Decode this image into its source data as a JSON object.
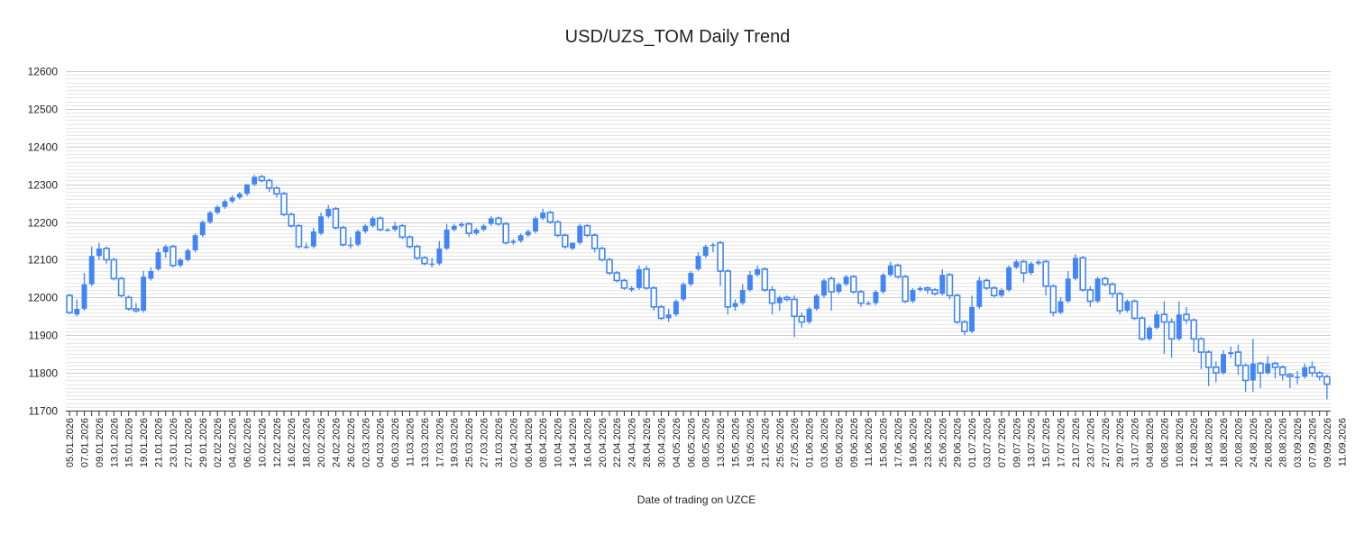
{
  "chart_data": {
    "type": "candlestick",
    "title": "USD/UZS_TOM Daily Trend",
    "xlabel": "Date of trading on UZCE",
    "ylabel": "",
    "ylim": [
      11700,
      12600
    ],
    "yticks": [
      11700,
      11800,
      11900,
      12000,
      12100,
      12200,
      12300,
      12400,
      12500,
      12600
    ],
    "minor_grid_step": 10,
    "grid": true,
    "colors": {
      "up": "#4285f4",
      "down_outline": "#4285f4",
      "down_fill": "#ffffff",
      "grid_major": "#cccccc",
      "grid_minor": "#e6e6e6"
    },
    "xtick_labels": [
      "05.01.2026",
      "07.01.2026",
      "09.01.2026",
      "13.01.2026",
      "15.01.2026",
      "19.01.2026",
      "21.01.2026",
      "23.01.2026",
      "27.01.2026",
      "29.01.2026",
      "02.02.2026",
      "04.02.2026",
      "06.02.2026",
      "10.02.2026",
      "12.02.2026",
      "16.02.2026",
      "18.02.2026",
      "20.02.2026",
      "24.02.2026",
      "26.02.2026",
      "02.03.2026",
      "04.03.2026",
      "06.03.2026",
      "11.03.2026",
      "13.03.2026",
      "17.03.2026",
      "19.03.2026",
      "25.03.2026",
      "27.03.2026",
      "31.03.2026",
      "02.04.2026",
      "06.04.2026",
      "08.04.2026",
      "10.04.2026",
      "14.04.2026",
      "16.04.2026",
      "20.04.2026",
      "22.04.2026",
      "24.04.2026",
      "28.04.2026",
      "30.04.2026",
      "04.05.2026",
      "06.05.2026",
      "08.05.2026",
      "13.05.2026",
      "15.05.2026",
      "19.05.2026",
      "21.05.2026",
      "25.05.2026",
      "27.05.2026",
      "01.06.2026",
      "03.06.2026",
      "05.06.2026",
      "09.06.2026",
      "11.06.2026",
      "15.06.2026",
      "17.06.2026",
      "19.06.2026",
      "23.06.2026",
      "25.06.2026",
      "29.06.2026",
      "01.07.2026",
      "03.07.2026",
      "07.07.2026",
      "09.07.2026",
      "13.07.2026",
      "15.07.2026",
      "17.07.2026",
      "21.07.2026",
      "23.07.2026",
      "27.07.2026",
      "29.07.2026",
      "31.07.2026",
      "04.08.2026",
      "06.08.2026",
      "10.08.2026",
      "12.08.2026",
      "14.08.2026",
      "18.08.2026",
      "20.08.2026",
      "24.08.2026",
      "26.08.2026",
      "28.08.2026",
      "03.09.2026",
      "07.09.2026",
      "09.09.2026",
      "11.09.2026"
    ],
    "candles": [
      {
        "o": 12005,
        "h": 12010,
        "l": 11955,
        "c": 11960
      },
      {
        "o": 11955,
        "h": 11995,
        "l": 11950,
        "c": 11970
      },
      {
        "o": 11970,
        "h": 12065,
        "l": 11965,
        "c": 12035
      },
      {
        "o": 12035,
        "h": 12135,
        "l": 12030,
        "c": 12110
      },
      {
        "o": 12110,
        "h": 12145,
        "l": 12100,
        "c": 12130
      },
      {
        "o": 12130,
        "h": 12135,
        "l": 12090,
        "c": 12100
      },
      {
        "o": 12100,
        "h": 12105,
        "l": 12045,
        "c": 12050
      },
      {
        "o": 12050,
        "h": 12055,
        "l": 12000,
        "c": 12005
      },
      {
        "o": 12000,
        "h": 12005,
        "l": 11965,
        "c": 11970
      },
      {
        "o": 11970,
        "h": 11985,
        "l": 11960,
        "c": 11965
      },
      {
        "o": 11965,
        "h": 12070,
        "l": 11960,
        "c": 12055
      },
      {
        "o": 12050,
        "h": 12080,
        "l": 12045,
        "c": 12070
      },
      {
        "o": 12075,
        "h": 12130,
        "l": 12070,
        "c": 12120
      },
      {
        "o": 12120,
        "h": 12140,
        "l": 12105,
        "c": 12135
      },
      {
        "o": 12135,
        "h": 12140,
        "l": 12080,
        "c": 12085
      },
      {
        "o": 12085,
        "h": 12105,
        "l": 12080,
        "c": 12100
      },
      {
        "o": 12100,
        "h": 12130,
        "l": 12095,
        "c": 12125
      },
      {
        "o": 12125,
        "h": 12170,
        "l": 12120,
        "c": 12165
      },
      {
        "o": 12165,
        "h": 12205,
        "l": 12160,
        "c": 12200
      },
      {
        "o": 12200,
        "h": 12230,
        "l": 12195,
        "c": 12225
      },
      {
        "o": 12225,
        "h": 12245,
        "l": 12220,
        "c": 12240
      },
      {
        "o": 12240,
        "h": 12260,
        "l": 12235,
        "c": 12255
      },
      {
        "o": 12255,
        "h": 12270,
        "l": 12250,
        "c": 12265
      },
      {
        "o": 12265,
        "h": 12280,
        "l": 12260,
        "c": 12275
      },
      {
        "o": 12275,
        "h": 12300,
        "l": 12270,
        "c": 12300
      },
      {
        "o": 12300,
        "h": 12325,
        "l": 12295,
        "c": 12320
      },
      {
        "o": 12320,
        "h": 12325,
        "l": 12305,
        "c": 12310
      },
      {
        "o": 12310,
        "h": 12315,
        "l": 12280,
        "c": 12290
      },
      {
        "o": 12290,
        "h": 12295,
        "l": 12265,
        "c": 12275
      },
      {
        "o": 12275,
        "h": 12280,
        "l": 12215,
        "c": 12220
      },
      {
        "o": 12220,
        "h": 12225,
        "l": 12185,
        "c": 12190
      },
      {
        "o": 12190,
        "h": 12195,
        "l": 12130,
        "c": 12135
      },
      {
        "o": 12135,
        "h": 12145,
        "l": 12130,
        "c": 12135
      },
      {
        "o": 12135,
        "h": 12185,
        "l": 12130,
        "c": 12175
      },
      {
        "o": 12170,
        "h": 12225,
        "l": 12165,
        "c": 12215
      },
      {
        "o": 12215,
        "h": 12245,
        "l": 12210,
        "c": 12235
      },
      {
        "o": 12235,
        "h": 12240,
        "l": 12180,
        "c": 12185
      },
      {
        "o": 12185,
        "h": 12190,
        "l": 12135,
        "c": 12140
      },
      {
        "o": 12140,
        "h": 12160,
        "l": 12130,
        "c": 12140
      },
      {
        "o": 12140,
        "h": 12180,
        "l": 12135,
        "c": 12175
      },
      {
        "o": 12175,
        "h": 12195,
        "l": 12170,
        "c": 12190
      },
      {
        "o": 12190,
        "h": 12215,
        "l": 12185,
        "c": 12210
      },
      {
        "o": 12210,
        "h": 12215,
        "l": 12175,
        "c": 12180
      },
      {
        "o": 12180,
        "h": 12185,
        "l": 12175,
        "c": 12180
      },
      {
        "o": 12180,
        "h": 12200,
        "l": 12175,
        "c": 12190
      },
      {
        "o": 12190,
        "h": 12195,
        "l": 12155,
        "c": 12160
      },
      {
        "o": 12160,
        "h": 12165,
        "l": 12130,
        "c": 12135
      },
      {
        "o": 12135,
        "h": 12140,
        "l": 12100,
        "c": 12105
      },
      {
        "o": 12105,
        "h": 12110,
        "l": 12085,
        "c": 12090
      },
      {
        "o": 12090,
        "h": 12105,
        "l": 12080,
        "c": 12090
      },
      {
        "o": 12090,
        "h": 12150,
        "l": 12085,
        "c": 12130
      },
      {
        "o": 12130,
        "h": 12195,
        "l": 12125,
        "c": 12180
      },
      {
        "o": 12180,
        "h": 12195,
        "l": 12175,
        "c": 12190
      },
      {
        "o": 12190,
        "h": 12200,
        "l": 12185,
        "c": 12195
      },
      {
        "o": 12195,
        "h": 12200,
        "l": 12160,
        "c": 12170
      },
      {
        "o": 12170,
        "h": 12185,
        "l": 12165,
        "c": 12180
      },
      {
        "o": 12180,
        "h": 12195,
        "l": 12175,
        "c": 12190
      },
      {
        "o": 12195,
        "h": 12215,
        "l": 12190,
        "c": 12210
      },
      {
        "o": 12210,
        "h": 12215,
        "l": 12190,
        "c": 12195
      },
      {
        "o": 12195,
        "h": 12200,
        "l": 12140,
        "c": 12145
      },
      {
        "o": 12145,
        "h": 12155,
        "l": 12140,
        "c": 12150
      },
      {
        "o": 12150,
        "h": 12170,
        "l": 12145,
        "c": 12165
      },
      {
        "o": 12165,
        "h": 12180,
        "l": 12160,
        "c": 12175
      },
      {
        "o": 12175,
        "h": 12215,
        "l": 12170,
        "c": 12210
      },
      {
        "o": 12210,
        "h": 12235,
        "l": 12205,
        "c": 12225
      },
      {
        "o": 12225,
        "h": 12230,
        "l": 12195,
        "c": 12200
      },
      {
        "o": 12200,
        "h": 12205,
        "l": 12160,
        "c": 12165
      },
      {
        "o": 12165,
        "h": 12170,
        "l": 12130,
        "c": 12135
      },
      {
        "o": 12130,
        "h": 12145,
        "l": 12125,
        "c": 12145
      },
      {
        "o": 12145,
        "h": 12195,
        "l": 12140,
        "c": 12190
      },
      {
        "o": 12190,
        "h": 12195,
        "l": 12160,
        "c": 12165
      },
      {
        "o": 12165,
        "h": 12170,
        "l": 12120,
        "c": 12130
      },
      {
        "o": 12130,
        "h": 12135,
        "l": 12095,
        "c": 12100
      },
      {
        "o": 12100,
        "h": 12105,
        "l": 12060,
        "c": 12065
      },
      {
        "o": 12065,
        "h": 12070,
        "l": 12040,
        "c": 12045
      },
      {
        "o": 12045,
        "h": 12050,
        "l": 12020,
        "c": 12025
      },
      {
        "o": 12020,
        "h": 12030,
        "l": 12015,
        "c": 12025
      },
      {
        "o": 12025,
        "h": 12085,
        "l": 12020,
        "c": 12075
      },
      {
        "o": 12075,
        "h": 12085,
        "l": 12020,
        "c": 12025
      },
      {
        "o": 12025,
        "h": 12030,
        "l": 11965,
        "c": 11975
      },
      {
        "o": 11975,
        "h": 11980,
        "l": 11940,
        "c": 11945
      },
      {
        "o": 11945,
        "h": 11970,
        "l": 11935,
        "c": 11955
      },
      {
        "o": 11955,
        "h": 11995,
        "l": 11950,
        "c": 11990
      },
      {
        "o": 11995,
        "h": 12040,
        "l": 11990,
        "c": 12035
      },
      {
        "o": 12035,
        "h": 12070,
        "l": 12030,
        "c": 12065
      },
      {
        "o": 12075,
        "h": 12120,
        "l": 12070,
        "c": 12110
      },
      {
        "o": 12110,
        "h": 12140,
        "l": 12105,
        "c": 12135
      },
      {
        "o": 12140,
        "h": 12145,
        "l": 12120,
        "c": 12140
      },
      {
        "o": 12145,
        "h": 12150,
        "l": 12030,
        "c": 12070
      },
      {
        "o": 12070,
        "h": 12075,
        "l": 11955,
        "c": 11975
      },
      {
        "o": 11975,
        "h": 11995,
        "l": 11965,
        "c": 11985
      },
      {
        "o": 11985,
        "h": 12035,
        "l": 11980,
        "c": 12020
      },
      {
        "o": 12020,
        "h": 12070,
        "l": 12015,
        "c": 12060
      },
      {
        "o": 12060,
        "h": 12085,
        "l": 12055,
        "c": 12075
      },
      {
        "o": 12075,
        "h": 12080,
        "l": 12015,
        "c": 12020
      },
      {
        "o": 12020,
        "h": 12030,
        "l": 11955,
        "c": 11985
      },
      {
        "o": 11985,
        "h": 12005,
        "l": 11965,
        "c": 12000
      },
      {
        "o": 12000,
        "h": 12005,
        "l": 11990,
        "c": 11995
      },
      {
        "o": 11995,
        "h": 12005,
        "l": 11895,
        "c": 11950
      },
      {
        "o": 11950,
        "h": 11960,
        "l": 11920,
        "c": 11935
      },
      {
        "o": 11935,
        "h": 11975,
        "l": 11930,
        "c": 11970
      },
      {
        "o": 11970,
        "h": 12010,
        "l": 11965,
        "c": 12005
      },
      {
        "o": 12005,
        "h": 12050,
        "l": 12000,
        "c": 12045
      },
      {
        "o": 12050,
        "h": 12055,
        "l": 11965,
        "c": 12015
      },
      {
        "o": 12015,
        "h": 12040,
        "l": 12010,
        "c": 12035
      },
      {
        "o": 12035,
        "h": 12060,
        "l": 12030,
        "c": 12055
      },
      {
        "o": 12055,
        "h": 12060,
        "l": 12010,
        "c": 12015
      },
      {
        "o": 12015,
        "h": 12020,
        "l": 11975,
        "c": 11985
      },
      {
        "o": 11985,
        "h": 11990,
        "l": 11980,
        "c": 11985
      },
      {
        "o": 11985,
        "h": 12020,
        "l": 11980,
        "c": 12015
      },
      {
        "o": 12015,
        "h": 12065,
        "l": 12010,
        "c": 12060
      },
      {
        "o": 12060,
        "h": 12095,
        "l": 12055,
        "c": 12085
      },
      {
        "o": 12085,
        "h": 12090,
        "l": 12050,
        "c": 12055
      },
      {
        "o": 12055,
        "h": 12060,
        "l": 11985,
        "c": 11990
      },
      {
        "o": 11990,
        "h": 12025,
        "l": 11985,
        "c": 12020
      },
      {
        "o": 12020,
        "h": 12030,
        "l": 12015,
        "c": 12025
      },
      {
        "o": 12025,
        "h": 12030,
        "l": 12010,
        "c": 12020
      },
      {
        "o": 12020,
        "h": 12025,
        "l": 12005,
        "c": 12010
      },
      {
        "o": 12010,
        "h": 12075,
        "l": 12005,
        "c": 12060
      },
      {
        "o": 12060,
        "h": 12065,
        "l": 11995,
        "c": 12005
      },
      {
        "o": 12005,
        "h": 12010,
        "l": 11930,
        "c": 11935
      },
      {
        "o": 11935,
        "h": 11940,
        "l": 11900,
        "c": 11910
      },
      {
        "o": 11910,
        "h": 12005,
        "l": 11905,
        "c": 11975
      },
      {
        "o": 11975,
        "h": 12055,
        "l": 11970,
        "c": 12045
      },
      {
        "o": 12045,
        "h": 12050,
        "l": 12020,
        "c": 12025
      },
      {
        "o": 12025,
        "h": 12030,
        "l": 12000,
        "c": 12005
      },
      {
        "o": 12005,
        "h": 12025,
        "l": 12000,
        "c": 12020
      },
      {
        "o": 12020,
        "h": 12085,
        "l": 12015,
        "c": 12080
      },
      {
        "o": 12080,
        "h": 12100,
        "l": 12075,
        "c": 12095
      },
      {
        "o": 12095,
        "h": 12100,
        "l": 12040,
        "c": 12065
      },
      {
        "o": 12065,
        "h": 12095,
        "l": 12060,
        "c": 12090
      },
      {
        "o": 12090,
        "h": 12100,
        "l": 12085,
        "c": 12095
      },
      {
        "o": 12095,
        "h": 12100,
        "l": 12005,
        "c": 12030
      },
      {
        "o": 12030,
        "h": 12035,
        "l": 11950,
        "c": 11960
      },
      {
        "o": 11960,
        "h": 12000,
        "l": 11955,
        "c": 11990
      },
      {
        "o": 11990,
        "h": 12070,
        "l": 11985,
        "c": 12050
      },
      {
        "o": 12050,
        "h": 12115,
        "l": 12045,
        "c": 12105
      },
      {
        "o": 12105,
        "h": 12110,
        "l": 12015,
        "c": 12020
      },
      {
        "o": 12020,
        "h": 12030,
        "l": 11975,
        "c": 11990
      },
      {
        "o": 11990,
        "h": 12055,
        "l": 11985,
        "c": 12050
      },
      {
        "o": 12050,
        "h": 12055,
        "l": 12030,
        "c": 12035
      },
      {
        "o": 12035,
        "h": 12040,
        "l": 12000,
        "c": 12010
      },
      {
        "o": 12010,
        "h": 12015,
        "l": 11955,
        "c": 11965
      },
      {
        "o": 11965,
        "h": 11995,
        "l": 11960,
        "c": 11990
      },
      {
        "o": 11990,
        "h": 11995,
        "l": 11940,
        "c": 11945
      },
      {
        "o": 11945,
        "h": 11950,
        "l": 11885,
        "c": 11890
      },
      {
        "o": 11890,
        "h": 11925,
        "l": 11885,
        "c": 11920
      },
      {
        "o": 11920,
        "h": 11965,
        "l": 11915,
        "c": 11955
      },
      {
        "o": 11955,
        "h": 11990,
        "l": 11850,
        "c": 11935
      },
      {
        "o": 11935,
        "h": 11945,
        "l": 11840,
        "c": 11890
      },
      {
        "o": 11890,
        "h": 11990,
        "l": 11885,
        "c": 11955
      },
      {
        "o": 11955,
        "h": 11975,
        "l": 11930,
        "c": 11940
      },
      {
        "o": 11940,
        "h": 11945,
        "l": 11855,
        "c": 11890
      },
      {
        "o": 11890,
        "h": 11895,
        "l": 11810,
        "c": 11855
      },
      {
        "o": 11855,
        "h": 11860,
        "l": 11765,
        "c": 11815
      },
      {
        "o": 11815,
        "h": 11830,
        "l": 11775,
        "c": 11800
      },
      {
        "o": 11800,
        "h": 11860,
        "l": 11795,
        "c": 11850
      },
      {
        "o": 11850,
        "h": 11870,
        "l": 11840,
        "c": 11855
      },
      {
        "o": 11855,
        "h": 11875,
        "l": 11795,
        "c": 11820
      },
      {
        "o": 11820,
        "h": 11825,
        "l": 11750,
        "c": 11780
      },
      {
        "o": 11780,
        "h": 11890,
        "l": 11750,
        "c": 11825
      },
      {
        "o": 11825,
        "h": 11830,
        "l": 11760,
        "c": 11800
      },
      {
        "o": 11800,
        "h": 11845,
        "l": 11795,
        "c": 11825
      },
      {
        "o": 11825,
        "h": 11830,
        "l": 11785,
        "c": 11815
      },
      {
        "o": 11815,
        "h": 11820,
        "l": 11780,
        "c": 11795
      },
      {
        "o": 11795,
        "h": 11800,
        "l": 11760,
        "c": 11790
      },
      {
        "o": 11790,
        "h": 11805,
        "l": 11770,
        "c": 11790
      },
      {
        "o": 11790,
        "h": 11825,
        "l": 11785,
        "c": 11815
      },
      {
        "o": 11815,
        "h": 11830,
        "l": 11790,
        "c": 11800
      },
      {
        "o": 11800,
        "h": 11805,
        "l": 11780,
        "c": 11790
      },
      {
        "o": 11790,
        "h": 11795,
        "l": 11730,
        "c": 11770
      }
    ]
  }
}
